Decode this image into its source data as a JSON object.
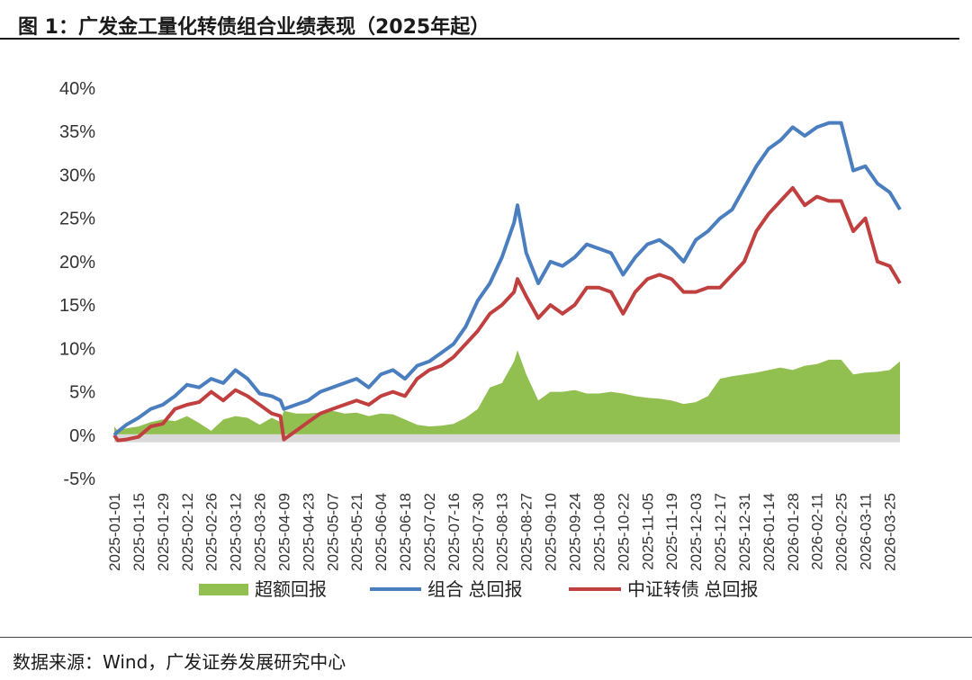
{
  "title": "图 1：广发金工量化转债组合业绩表现（2025年起）",
  "source": "数据来源：Wind，广发证券发展研究中心",
  "colors": {
    "excess": "#92c050",
    "portfolio": "#4a7ebf",
    "index": "#c0403f",
    "zero_axis": "#d9d9d9"
  },
  "chart_data": {
    "type": "line",
    "title": "",
    "xlabel": "",
    "ylabel": "",
    "ylim": [
      -0.05,
      0.4
    ],
    "yticks": [
      -0.05,
      0.0,
      0.05,
      0.1,
      0.15,
      0.2,
      0.25,
      0.3,
      0.35,
      0.4
    ],
    "ytick_labels": [
      "-5%",
      "0%",
      "5%",
      "10%",
      "15%",
      "20%",
      "25%",
      "30%",
      "35%",
      "40%"
    ],
    "xticks": [
      "2025-01-01",
      "2025-01-15",
      "2025-01-29",
      "2025-02-12",
      "2025-02-26",
      "2025-03-12",
      "2025-03-26",
      "2025-04-09",
      "2025-04-23",
      "2025-05-07",
      "2025-05-21",
      "2025-06-04",
      "2025-06-18",
      "2025-07-02",
      "2025-07-16",
      "2025-07-30",
      "2025-08-13",
      "2025-08-27",
      "2025-09-10",
      "2025-09-24",
      "2025-10-08",
      "2025-10-22",
      "2025-11-05",
      "2025-11-19",
      "2025-12-03",
      "2025-12-17",
      "2025-12-31",
      "2026-01-14",
      "2026-01-28",
      "2026-02-11",
      "2026-02-25",
      "2026-03-11",
      "2026-03-25"
    ],
    "legend_position": "bottom",
    "grid": false,
    "x": [
      "2025-01-01",
      "2025-01-03",
      "2025-01-08",
      "2025-01-15",
      "2025-01-22",
      "2025-01-29",
      "2025-02-05",
      "2025-02-12",
      "2025-02-19",
      "2025-02-26",
      "2025-03-05",
      "2025-03-12",
      "2025-03-19",
      "2025-03-26",
      "2025-04-02",
      "2025-04-07",
      "2025-04-09",
      "2025-04-16",
      "2025-04-23",
      "2025-04-30",
      "2025-05-07",
      "2025-05-14",
      "2025-05-21",
      "2025-05-28",
      "2025-06-04",
      "2025-06-11",
      "2025-06-18",
      "2025-06-25",
      "2025-07-02",
      "2025-07-09",
      "2025-07-16",
      "2025-07-23",
      "2025-07-30",
      "2025-08-06",
      "2025-08-13",
      "2025-08-20",
      "2025-08-22",
      "2025-08-27",
      "2025-09-03",
      "2025-09-10",
      "2025-09-17",
      "2025-09-24",
      "2025-10-01",
      "2025-10-08",
      "2025-10-15",
      "2025-10-22",
      "2025-10-29",
      "2025-11-05",
      "2025-11-12",
      "2025-11-19",
      "2025-11-26",
      "2025-12-03",
      "2025-12-10",
      "2025-12-17",
      "2025-12-24",
      "2025-12-31",
      "2026-01-07",
      "2026-01-14",
      "2026-01-21",
      "2026-01-28",
      "2026-02-04",
      "2026-02-11",
      "2026-02-18",
      "2026-02-25",
      "2026-03-04",
      "2026-03-11",
      "2026-03-18",
      "2026-03-25",
      "2026-03-31"
    ],
    "series": [
      {
        "name": "超额回报",
        "kind": "area",
        "values": [
          0.01,
          0.005,
          0.008,
          0.01,
          0.015,
          0.018,
          0.016,
          0.022,
          0.014,
          0.005,
          0.018,
          0.022,
          0.02,
          0.012,
          0.02,
          0.015,
          0.028,
          0.025,
          0.025,
          0.026,
          0.028,
          0.025,
          0.026,
          0.022,
          0.025,
          0.024,
          0.018,
          0.012,
          0.01,
          0.011,
          0.013,
          0.02,
          0.03,
          0.055,
          0.06,
          0.085,
          0.098,
          0.07,
          0.04,
          0.05,
          0.05,
          0.052,
          0.048,
          0.048,
          0.05,
          0.048,
          0.045,
          0.043,
          0.042,
          0.04,
          0.036,
          0.038,
          0.045,
          0.065,
          0.068,
          0.07,
          0.072,
          0.075,
          0.078,
          0.075,
          0.08,
          0.082,
          0.087,
          0.087,
          0.07,
          0.072,
          0.073,
          0.075,
          0.085
        ]
      },
      {
        "name": "组合 总回报",
        "kind": "line",
        "values": [
          0.0,
          0.004,
          0.012,
          0.02,
          0.03,
          0.035,
          0.045,
          0.058,
          0.055,
          0.065,
          0.06,
          0.075,
          0.065,
          0.048,
          0.045,
          0.04,
          0.03,
          0.035,
          0.04,
          0.05,
          0.055,
          0.06,
          0.065,
          0.055,
          0.07,
          0.075,
          0.065,
          0.08,
          0.085,
          0.095,
          0.105,
          0.125,
          0.155,
          0.175,
          0.205,
          0.245,
          0.265,
          0.21,
          0.175,
          0.2,
          0.195,
          0.205,
          0.22,
          0.215,
          0.21,
          0.185,
          0.205,
          0.22,
          0.225,
          0.215,
          0.2,
          0.225,
          0.235,
          0.25,
          0.26,
          0.285,
          0.31,
          0.33,
          0.34,
          0.355,
          0.345,
          0.355,
          0.36,
          0.36,
          0.305,
          0.31,
          0.29,
          0.28,
          0.26
        ]
      },
      {
        "name": "中证转债 总回报",
        "kind": "line",
        "values": [
          0.0,
          -0.006,
          -0.005,
          -0.002,
          0.01,
          0.013,
          0.03,
          0.035,
          0.038,
          0.05,
          0.04,
          0.052,
          0.045,
          0.035,
          0.025,
          0.022,
          -0.005,
          0.005,
          0.015,
          0.025,
          0.03,
          0.035,
          0.04,
          0.035,
          0.045,
          0.05,
          0.045,
          0.065,
          0.075,
          0.08,
          0.09,
          0.105,
          0.12,
          0.14,
          0.15,
          0.165,
          0.18,
          0.16,
          0.135,
          0.15,
          0.14,
          0.15,
          0.17,
          0.17,
          0.165,
          0.14,
          0.165,
          0.18,
          0.185,
          0.18,
          0.165,
          0.165,
          0.17,
          0.17,
          0.185,
          0.2,
          0.235,
          0.255,
          0.27,
          0.285,
          0.265,
          0.275,
          0.27,
          0.27,
          0.235,
          0.25,
          0.2,
          0.195,
          0.175
        ]
      }
    ]
  }
}
